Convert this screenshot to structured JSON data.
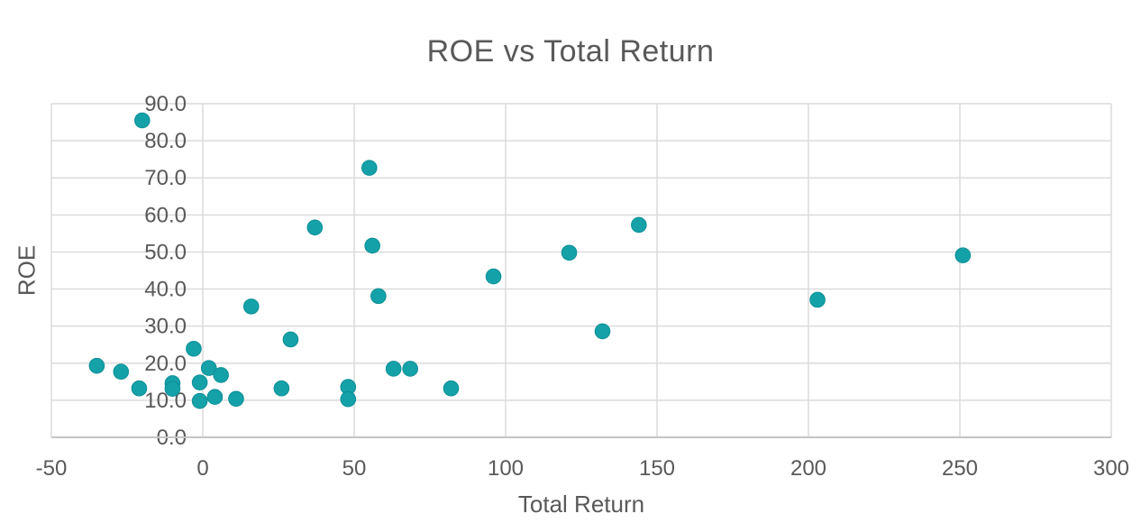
{
  "colors": {
    "marker": "#15A1A8",
    "marker_edge": "#0D8F97",
    "text": "#595959",
    "gridline": "#DBDBDB",
    "axis_line": "#C4C4C4",
    "background": "#FFFFFF"
  },
  "chart_data": {
    "type": "scatter",
    "title": "ROE vs Total Return",
    "xlabel": "Total Return",
    "ylabel": "ROE",
    "xlim": [
      -50,
      300
    ],
    "ylim": [
      0,
      90
    ],
    "grid": true,
    "legend": false,
    "x_tick_values": [
      -50,
      0,
      50,
      100,
      150,
      200,
      250,
      300
    ],
    "x_tick_labels": [
      "-50",
      "0",
      "50",
      "100",
      "150",
      "200",
      "250",
      "300"
    ],
    "y_tick_values": [
      0,
      10,
      20,
      30,
      40,
      50,
      60,
      70,
      80,
      90
    ],
    "y_tick_labels": [
      "0.0",
      "10.0",
      "20.0",
      "30.0",
      "40.0",
      "50.0",
      "60.0",
      "70.0",
      "80.0",
      "90.0"
    ],
    "series": [
      {
        "name": "ROE",
        "points": [
          {
            "x": -35,
            "y": 19.3
          },
          {
            "x": -27,
            "y": 17.7
          },
          {
            "x": -21,
            "y": 13.2
          },
          {
            "x": -20,
            "y": 85.5
          },
          {
            "x": -10,
            "y": 14.6
          },
          {
            "x": -10,
            "y": 13.1
          },
          {
            "x": -3,
            "y": 23.9
          },
          {
            "x": -1,
            "y": 14.8
          },
          {
            "x": -1,
            "y": 9.8
          },
          {
            "x": 2,
            "y": 18.7
          },
          {
            "x": 4,
            "y": 10.9
          },
          {
            "x": 6,
            "y": 16.8
          },
          {
            "x": 11,
            "y": 10.4
          },
          {
            "x": 16,
            "y": 35.3
          },
          {
            "x": 26,
            "y": 13.2
          },
          {
            "x": 29,
            "y": 26.4
          },
          {
            "x": 37,
            "y": 56.6
          },
          {
            "x": 48,
            "y": 13.6
          },
          {
            "x": 48,
            "y": 10.3
          },
          {
            "x": 55,
            "y": 72.7
          },
          {
            "x": 56,
            "y": 51.7
          },
          {
            "x": 58,
            "y": 38.1
          },
          {
            "x": 63,
            "y": 18.5
          },
          {
            "x": 68.5,
            "y": 18.5
          },
          {
            "x": 82,
            "y": 13.2
          },
          {
            "x": 96,
            "y": 43.4
          },
          {
            "x": 121,
            "y": 49.8
          },
          {
            "x": 132,
            "y": 28.6
          },
          {
            "x": 144,
            "y": 57.3
          },
          {
            "x": 203,
            "y": 37.1
          },
          {
            "x": 251,
            "y": 49.1
          }
        ]
      }
    ]
  }
}
